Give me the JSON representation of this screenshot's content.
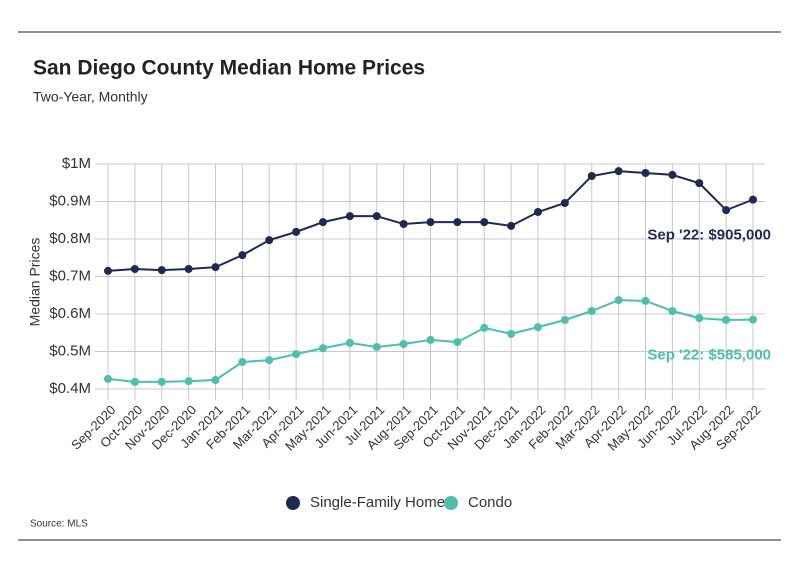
{
  "chart_data": {
    "type": "line",
    "title": "San Diego County Median Home Prices",
    "subtitle": "Two-Year, Monthly",
    "y_label": "Median Prices",
    "source": "Source:  MLS",
    "categories": [
      "Sep-2020",
      "Oct-2020",
      "Nov-2020",
      "Dec-2020",
      "Jan-2021",
      "Feb-2021",
      "Mar-2021",
      "Apr-2021",
      "May-2021",
      "Jun-2021",
      "Jul-2021",
      "Aug-2021",
      "Sep-2021",
      "Oct-2021",
      "Nov-2021",
      "Dec-2021",
      "Jan-2022",
      "Feb-2022",
      "Mar-2022",
      "Apr-2022",
      "May-2022",
      "Jun-2022",
      "Jul-2022",
      "Aug-2022",
      "Sep-2022"
    ],
    "series": [
      {
        "name": "Single-Family Home",
        "color": "#1f2a52",
        "values": [
          715000,
          720000,
          717000,
          720000,
          725000,
          757000,
          797000,
          819000,
          845000,
          861000,
          861000,
          840000,
          845000,
          845000,
          845000,
          835000,
          872000,
          896000,
          968000,
          981000,
          976000,
          971000,
          949000,
          877000,
          905000
        ],
        "annotation": "Sep '22: $905,000"
      },
      {
        "name": "Condo",
        "color": "#4dbfad",
        "values": [
          427000,
          419000,
          419000,
          421000,
          424000,
          472000,
          477000,
          493000,
          509000,
          523000,
          512000,
          520000,
          531000,
          525000,
          563000,
          547000,
          565000,
          584000,
          608000,
          637000,
          635000,
          608000,
          589000,
          584000,
          585000
        ],
        "annotation": "Sep '22: $585,000"
      }
    ],
    "ylim": [
      370000,
      1000000
    ],
    "yticks": [
      {
        "value": 400000,
        "label": "$0.4M"
      },
      {
        "value": 500000,
        "label": "$0.5M"
      },
      {
        "value": 600000,
        "label": "$0.6M"
      },
      {
        "value": 700000,
        "label": "$0.7M"
      },
      {
        "value": 800000,
        "label": "$0.8M"
      },
      {
        "value": 900000,
        "label": "$0.9M"
      },
      {
        "value": 1000000,
        "label": "$1M"
      }
    ],
    "grid": true,
    "legend": "bottom"
  }
}
